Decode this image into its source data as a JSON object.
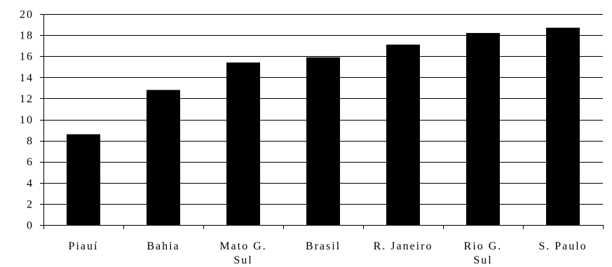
{
  "chart_data": {
    "type": "bar",
    "title": "",
    "xlabel": "",
    "ylabel": "",
    "categories": [
      "Piauí",
      "Bahia",
      "Mato G. Sul",
      "Brasil",
      "R. Janeiro",
      "Rio G. Sul",
      "S. Paulo"
    ],
    "category_lines": [
      [
        "Piauí"
      ],
      [
        "Bahia"
      ],
      [
        "Mato G.",
        "Sul"
      ],
      [
        "Brasil"
      ],
      [
        "R. Janeiro"
      ],
      [
        "Rio G.",
        "Sul"
      ],
      [
        "S. Paulo"
      ]
    ],
    "values": [
      8.6,
      12.8,
      15.4,
      15.9,
      17.1,
      18.2,
      18.7
    ],
    "ylim": [
      0,
      20
    ],
    "yticks": [
      0,
      2,
      4,
      6,
      8,
      10,
      12,
      14,
      16,
      18,
      20
    ],
    "grid": true,
    "legend": "none",
    "bar_color": "#000000"
  }
}
